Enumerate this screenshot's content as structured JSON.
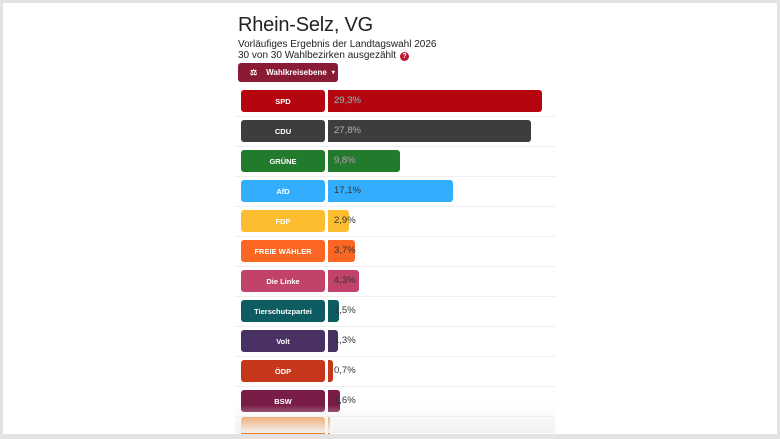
{
  "header": {
    "title": "Rhein-Selz, VG",
    "subtitle": "Vorläufiges Ergebnis der Landtagswahl 2026",
    "counted": "30 von 30 Wahlbezirken ausgezählt",
    "help_icon": "?"
  },
  "level_button": {
    "label": "Wahlkreisebene",
    "icon": "ballot-box-icon",
    "caret": "▾"
  },
  "chart_data": {
    "type": "bar",
    "orientation": "horizontal",
    "title": "Vorläufiges Ergebnis der Landtagswahl 2026",
    "categories": [
      "SPD",
      "CDU",
      "GRÜNE",
      "AfD",
      "FDP",
      "FREIE WÄHLER",
      "Die Linke",
      "Tierschutzpartei",
      "Volt",
      "ÖDP",
      "BSW"
    ],
    "values": [
      29.3,
      27.8,
      9.8,
      17.1,
      2.9,
      3.7,
      4.3,
      1.5,
      1.3,
      0.7,
      1.6
    ],
    "unit": "%"
  },
  "parties": [
    {
      "name": "SPD",
      "pct": "29,3%",
      "value": 29.3,
      "color": "#b5050f"
    },
    {
      "name": "CDU",
      "pct": "27,8%",
      "value": 27.8,
      "color": "#3d3d3d"
    },
    {
      "name": "GRÜNE",
      "pct": "9,8%",
      "value": 9.8,
      "color": "#227a2d"
    },
    {
      "name": "AfD",
      "pct": "17,1%",
      "value": 17.1,
      "color": "#33aeff"
    },
    {
      "name": "FDP",
      "pct": "2,9%",
      "value": 2.9,
      "color": "#fcbd31"
    },
    {
      "name": "FREIE WÄHLER",
      "pct": "3,7%",
      "value": 3.7,
      "color": "#fc6623"
    },
    {
      "name": "Die Linke",
      "pct": "4,3%",
      "value": 4.3,
      "color": "#c2436a"
    },
    {
      "name": "Tierschutzpartei",
      "pct": "1,5%",
      "value": 1.5,
      "color": "#0d5c61"
    },
    {
      "name": "Volt",
      "pct": "1,3%",
      "value": 1.3,
      "color": "#4a3163"
    },
    {
      "name": "ÖDP",
      "pct": "0,7%",
      "value": 0.7,
      "color": "#c6361a"
    },
    {
      "name": "BSW",
      "pct": "1,6%",
      "value": 1.6,
      "color": "#7a1c48"
    }
  ],
  "partial_row_color": "#ec7d22"
}
